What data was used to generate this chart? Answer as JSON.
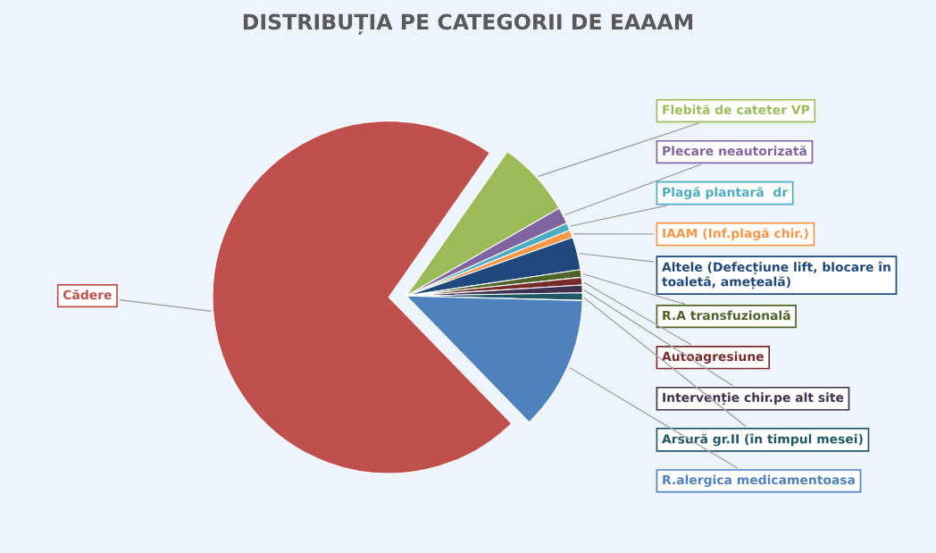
{
  "chart_data": {
    "type": "pie",
    "title": "DISTRIBUȚIA PE CATEGORII DE EAAAM",
    "categories": [
      "Cădere",
      "Flebită de cateter VP",
      "Plecare neautorizată",
      "Plagă plantară  dr",
      "IAAM (Inf.plagă chir.)",
      "Altele (Defecțiune lift, blocare în\ntoaletă, amețeală)",
      "R.A transfuzională",
      "Autoagresiune",
      "Intervenție chir.pe alt site",
      "Arsură gr.II (în timpul mesei)",
      "R.alergica medicamentoasa"
    ],
    "values": [
      72,
      7,
      1.5,
      0.7,
      0.7,
      3,
      0.7,
      0.7,
      0.7,
      0.7,
      12.3
    ],
    "colors": [
      "#c0504d",
      "#9bbb59",
      "#8064a2",
      "#4bacc6",
      "#f79646",
      "#1f497d",
      "#4f6228",
      "#772c2a",
      "#3f3151",
      "#215968",
      "#4f81bd"
    ]
  }
}
